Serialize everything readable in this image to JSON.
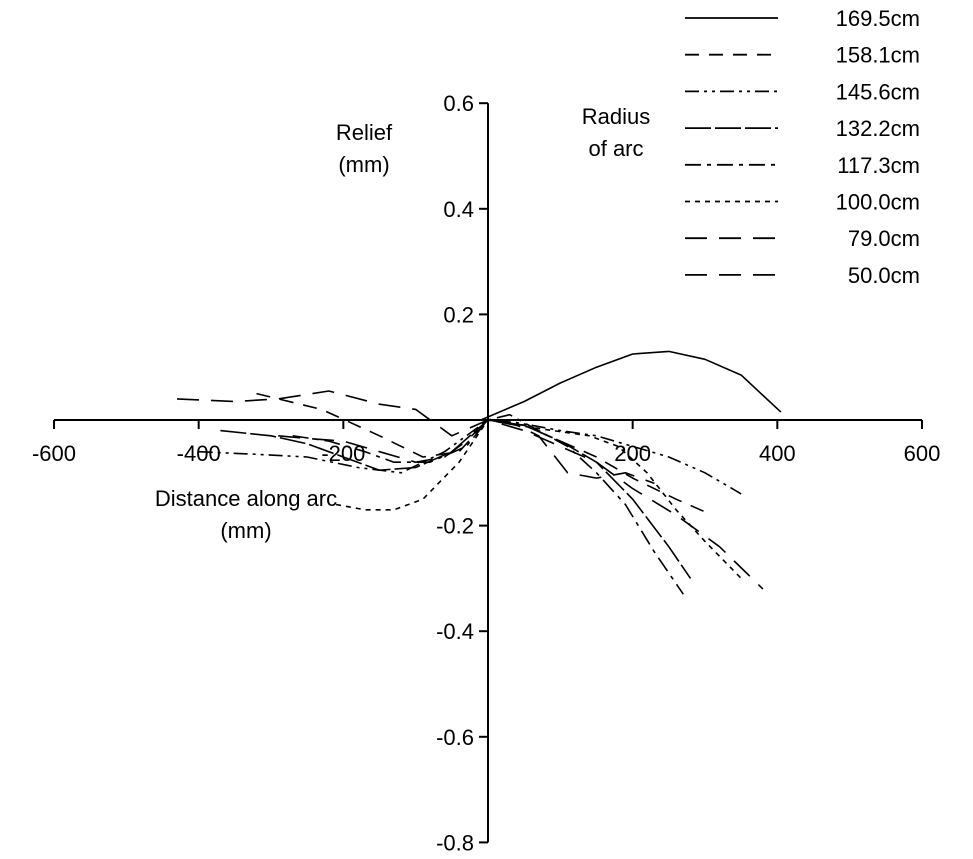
{
  "chart_data": {
    "type": "line",
    "xlabel": [
      "Distance along arc",
      "(mm)"
    ],
    "ylabel": [
      "Relief",
      "(mm)"
    ],
    "legend_title": [
      "Radius",
      "of arc"
    ],
    "xlim": [
      -600,
      600
    ],
    "ylim": [
      -0.8,
      0.6
    ],
    "x_ticks": [
      -600,
      -400,
      -200,
      200,
      400,
      600
    ],
    "x_tick_labels": [
      "-600",
      "-400",
      "-200",
      "200",
      "400",
      "600"
    ],
    "y_ticks": [
      0.6,
      0.4,
      0.2,
      -0.2,
      -0.4,
      -0.6,
      -0.8
    ],
    "y_tick_labels": [
      "0.6",
      "0.4",
      "0.2",
      "-0.2",
      "-0.4",
      "-0.6",
      "-0.8"
    ],
    "grid": false,
    "legend_position": "top-right",
    "series": [
      {
        "name": "169.5cm",
        "dash": "solid",
        "x": [
          -10,
          50,
          100,
          150,
          200,
          250,
          300,
          350,
          405
        ],
        "y": [
          0,
          0.035,
          0.07,
          0.1,
          0.125,
          0.13,
          0.115,
          0.085,
          0.015
        ]
      },
      {
        "name": "158.1cm",
        "dash": "short-dash",
        "x": [
          -320,
          -230,
          -150,
          -90,
          -40,
          0,
          50,
          100,
          150,
          200,
          260,
          310
        ],
        "y": [
          0.05,
          0.02,
          -0.03,
          -0.07,
          -0.06,
          0,
          -0.01,
          -0.04,
          -0.07,
          -0.11,
          -0.15,
          -0.18
        ]
      },
      {
        "name": "145.6cm",
        "dash": "dash-dot-dot",
        "x": [
          -400,
          -320,
          -250,
          -180,
          -120,
          -60,
          0,
          40,
          100,
          150,
          200,
          250,
          300,
          350
        ],
        "y": [
          -0.06,
          -0.065,
          -0.07,
          -0.09,
          -0.1,
          -0.06,
          0,
          -0.005,
          -0.02,
          -0.03,
          -0.05,
          -0.07,
          -0.1,
          -0.14
        ]
      },
      {
        "name": "132.2cm",
        "dash": "long-dash",
        "x": [
          -370,
          -300,
          -250,
          -200,
          -150,
          -100,
          -50,
          0,
          50,
          100,
          150,
          200,
          250,
          280
        ],
        "y": [
          -0.02,
          -0.03,
          -0.045,
          -0.07,
          -0.095,
          -0.09,
          -0.06,
          0,
          -0.01,
          -0.04,
          -0.08,
          -0.15,
          -0.24,
          -0.3
        ]
      },
      {
        "name": "117.3cm",
        "dash": "dash-dot",
        "x": [
          -270,
          -220,
          -170,
          -130,
          -80,
          -30,
          0,
          30,
          70,
          110,
          150,
          190,
          230,
          270
        ],
        "y": [
          -0.03,
          -0.04,
          -0.06,
          -0.08,
          -0.08,
          -0.05,
          0,
          0.01,
          -0.02,
          -0.05,
          -0.1,
          -0.16,
          -0.25,
          -0.33
        ]
      },
      {
        "name": "100.0cm",
        "dash": "dotted",
        "x": [
          -210,
          -170,
          -130,
          -90,
          -40,
          0,
          40,
          90,
          140,
          180,
          220,
          260,
          300,
          350
        ],
        "y": [
          -0.16,
          -0.17,
          -0.17,
          -0.15,
          -0.08,
          0,
          -0.01,
          -0.02,
          -0.03,
          -0.05,
          -0.1,
          -0.17,
          -0.23,
          -0.3
        ]
      },
      {
        "name": "79.0cm",
        "dash": "dash",
        "x": [
          -430,
          -350,
          -290,
          -220,
          -150,
          -100,
          -50,
          0,
          50,
          100,
          150,
          200,
          260,
          320,
          380
        ],
        "y": [
          0.04,
          0.035,
          0.04,
          0.055,
          0.03,
          0.02,
          -0.03,
          0,
          -0.02,
          -0.05,
          -0.08,
          -0.13,
          -0.18,
          -0.24,
          -0.32
        ]
      },
      {
        "name": "50.0cm",
        "dash": "dash",
        "x": [
          -290,
          -250,
          -200,
          -150,
          -100,
          -60,
          -30,
          0,
          40,
          70,
          110,
          150,
          190,
          230
        ],
        "y": [
          -0.03,
          -0.035,
          -0.04,
          -0.06,
          -0.08,
          -0.07,
          -0.04,
          0,
          -0.01,
          -0.03,
          -0.1,
          -0.11,
          -0.1,
          -0.12
        ]
      }
    ]
  }
}
